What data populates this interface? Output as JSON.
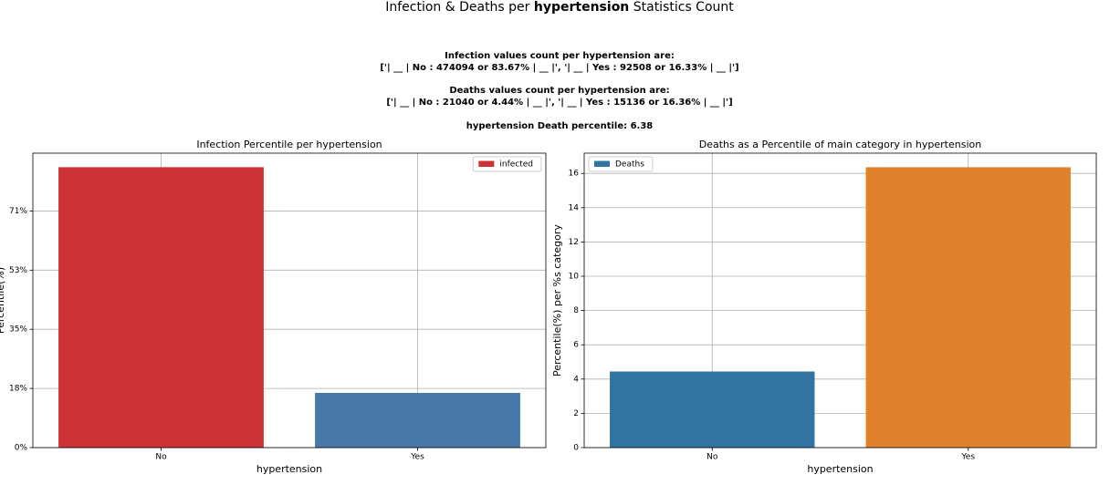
{
  "title": {
    "prefix": "Infection & Deaths per",
    "bold": "hypertension",
    "suffix": "Statistics Count"
  },
  "summary": [
    "Infection values count per hypertension are:",
    "['| __ | No : 474094 or 83.67% | __ |', '| __ | Yes : 92508 or 16.33% | __ |']",
    "Deaths values count per hypertension are:",
    "['| __ | No : 21040 or 4.44% | __ |', '| __ | Yes : 15136 or 16.36% | __ |']",
    "hypertension Death percentile: 6.38"
  ],
  "chart_data": [
    {
      "type": "bar",
      "title": "Infection Percentile per hypertension",
      "xlabel": "hypertension",
      "ylabel": "Percentile(%)",
      "categories": [
        "No",
        "Yes"
      ],
      "bar_colors": [
        "#cd3234",
        "#4679a8"
      ],
      "series": [
        {
          "name": "infected",
          "color": "#cd3234",
          "values": [
            83.67,
            16.33
          ]
        }
      ],
      "ylim": [
        0,
        87.85
      ],
      "yticks": [
        {
          "value": 0,
          "label": "0%"
        },
        {
          "value": 17.65,
          "label": "18%"
        },
        {
          "value": 35.3,
          "label": "35%"
        },
        {
          "value": 52.95,
          "label": "53%"
        },
        {
          "value": 70.6,
          "label": "71%"
        }
      ],
      "grid": true,
      "legend": "upper right"
    },
    {
      "type": "bar",
      "title": "Deaths as a Percentile of main category in hypertension",
      "xlabel": "hypertension",
      "ylabel": "Percentile(%) per %s category",
      "categories": [
        "No",
        "Yes"
      ],
      "bar_colors": [
        "#3274a1",
        "#e1812c"
      ],
      "series": [
        {
          "name": "Deaths",
          "color": "#3274a1",
          "values": [
            4.44,
            16.36
          ]
        }
      ],
      "ylim": [
        0,
        17.18
      ],
      "yticks": [
        0,
        2,
        4,
        6,
        8,
        10,
        12,
        14,
        16
      ],
      "grid": true,
      "legend": "upper left"
    }
  ]
}
